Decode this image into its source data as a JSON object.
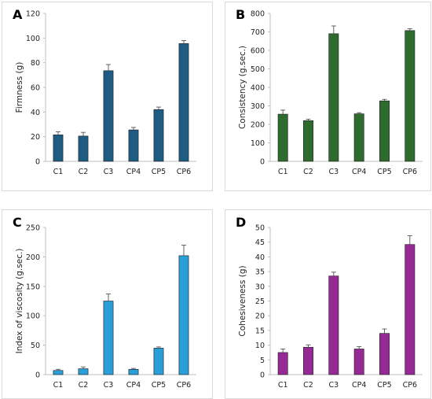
{
  "colors": {
    "panel_border": "#d9d9d9",
    "axis": "#bfbfbf",
    "error_bar": "#555555"
  },
  "chart_data": [
    {
      "type": "bar",
      "panel_label": "A",
      "ylabel": "Firmness (g)",
      "categories": [
        "C1",
        "C2",
        "C3",
        "CP4",
        "CP5",
        "CP6"
      ],
      "values": [
        21.5,
        20.5,
        73.5,
        25.5,
        42,
        95.5
      ],
      "errors": [
        2.5,
        3,
        5,
        2,
        2,
        2.5
      ],
      "ylim": [
        0,
        120
      ],
      "yticks": [
        0,
        20,
        40,
        60,
        80,
        100,
        120
      ],
      "color": "#1f5c84",
      "grid": false
    },
    {
      "type": "bar",
      "panel_label": "B",
      "ylabel": "Consistency (g.sec.)",
      "categories": [
        "C1",
        "C2",
        "C3",
        "CP4",
        "CP5",
        "CP6"
      ],
      "values": [
        255,
        220,
        690,
        257,
        327,
        707
      ],
      "errors": [
        22,
        8,
        42,
        6,
        8,
        10
      ],
      "ylim": [
        0,
        800
      ],
      "yticks": [
        0,
        100,
        200,
        300,
        400,
        500,
        600,
        700,
        800
      ],
      "color": "#2e6b2e",
      "grid": false
    },
    {
      "type": "bar",
      "panel_label": "C",
      "ylabel": "Index of viscosity (g.sec.)",
      "categories": [
        "C1",
        "C2",
        "C3",
        "CP4",
        "CP5",
        "CP6"
      ],
      "values": [
        7,
        10,
        125,
        9,
        45,
        202
      ],
      "errors": [
        2,
        3,
        12,
        1.5,
        2,
        18
      ],
      "ylim": [
        0,
        250
      ],
      "yticks": [
        0,
        50,
        100,
        150,
        200,
        250
      ],
      "color": "#2a9fd6",
      "grid": false
    },
    {
      "type": "bar",
      "panel_label": "D",
      "ylabel": "Cohesiveness (g)",
      "categories": [
        "C1",
        "C2",
        "C3",
        "CP4",
        "CP5",
        "CP6"
      ],
      "values": [
        7.5,
        9.3,
        33.5,
        8.7,
        14,
        44.2
      ],
      "errors": [
        1.2,
        0.8,
        1.3,
        0.8,
        1.5,
        3
      ],
      "ylim": [
        0,
        50
      ],
      "yticks": [
        0,
        5,
        10,
        15,
        20,
        25,
        30,
        35,
        40,
        45,
        50
      ],
      "color": "#952a95",
      "grid": false
    }
  ]
}
